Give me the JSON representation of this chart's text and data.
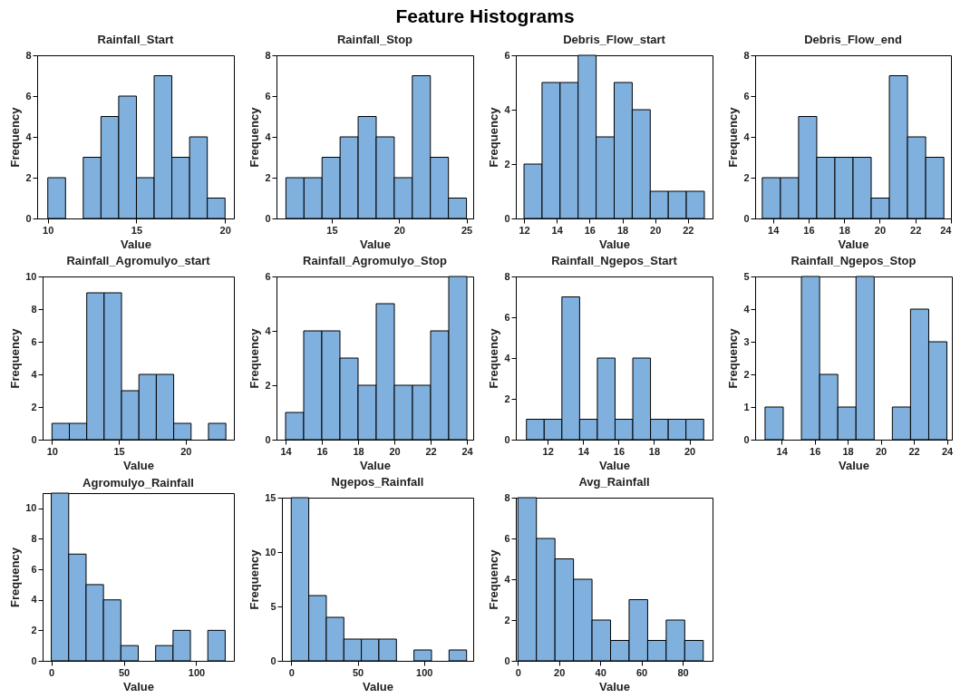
{
  "chart_data": [
    {
      "type": "other",
      "title": "Feature Histograms"
    },
    {
      "type": "histogram",
      "title": "Rainfall_Start",
      "xlabel": "Value",
      "ylabel": "Frequency",
      "color": "#80b1de",
      "bins": [
        10,
        11,
        12,
        13,
        14,
        15,
        16,
        17,
        18,
        19,
        20
      ],
      "values": [
        2,
        0,
        3,
        5,
        6,
        2,
        7,
        3,
        4,
        1
      ],
      "xlim": [
        9.4,
        20.5
      ],
      "xticks": [
        10,
        15,
        20
      ],
      "ylim": [
        0,
        8
      ],
      "yticks": [
        0,
        2,
        4,
        6,
        8
      ]
    },
    {
      "type": "histogram",
      "title": "Rainfall_Stop",
      "xlabel": "Value",
      "ylabel": "Frequency",
      "color": "#80b1de",
      "bins": [
        11.6,
        12.94,
        14.28,
        15.62,
        16.96,
        18.3,
        19.64,
        20.98,
        22.32,
        23.66,
        25
      ],
      "values": [
        2,
        2,
        3,
        4,
        5,
        4,
        2,
        7,
        3,
        1
      ],
      "xlim": [
        10.9,
        25.5
      ],
      "xticks": [
        15,
        20,
        25
      ],
      "ylim": [
        0,
        8
      ],
      "yticks": [
        0,
        2,
        4,
        6,
        8
      ]
    },
    {
      "type": "histogram",
      "title": "Debris_Flow_start",
      "xlabel": "Value",
      "ylabel": "Frequency",
      "color": "#80b1de",
      "bins": [
        12,
        13.1,
        14.2,
        15.3,
        16.4,
        17.5,
        18.6,
        19.7,
        20.8,
        21.9,
        23
      ],
      "values": [
        2,
        5,
        5,
        6,
        3,
        5,
        4,
        1,
        1,
        1
      ],
      "xlim": [
        11.5,
        23.5
      ],
      "xticks": [
        12,
        14,
        16,
        18,
        20,
        22
      ],
      "ylim": [
        0,
        6
      ],
      "yticks": [
        0,
        2,
        4,
        6
      ]
    },
    {
      "type": "histogram",
      "title": "Debris_Flow_end",
      "xlabel": "Value",
      "ylabel": "Frequency",
      "color": "#80b1de",
      "bins": [
        13.4,
        14.42,
        15.44,
        16.46,
        17.48,
        18.5,
        19.52,
        20.54,
        21.56,
        22.58,
        23.6
      ],
      "values": [
        2,
        2,
        5,
        3,
        3,
        3,
        1,
        7,
        4,
        3
      ],
      "xlim": [
        13,
        24
      ],
      "xticks": [
        14,
        16,
        18,
        20,
        22,
        24
      ],
      "ylim": [
        0,
        8
      ],
      "yticks": [
        0,
        2,
        4,
        6,
        8
      ]
    },
    {
      "type": "histogram",
      "title": "Rainfall_Agromulyo_start",
      "xlabel": "Value",
      "ylabel": "Frequency",
      "color": "#80b1de",
      "bins": [
        10,
        11.3,
        12.6,
        13.9,
        15.2,
        16.5,
        17.8,
        19.1,
        20.4,
        21.7,
        23
      ],
      "values": [
        1,
        1,
        9,
        9,
        3,
        4,
        4,
        1,
        0,
        1
      ],
      "xlim": [
        9.3,
        23.6
      ],
      "xticks": [
        10,
        15,
        20
      ],
      "ylim": [
        0,
        10
      ],
      "yticks": [
        0,
        2,
        4,
        6,
        8,
        10
      ]
    },
    {
      "type": "histogram",
      "title": "Rainfall_Agromulyo_Stop",
      "xlabel": "Value",
      "ylabel": "Frequency",
      "color": "#80b1de",
      "bins": [
        14,
        15,
        16,
        17,
        18,
        19,
        20,
        21,
        22,
        23,
        24
      ],
      "values": [
        1,
        4,
        4,
        3,
        2,
        5,
        2,
        2,
        4,
        6
      ],
      "xlim": [
        13.5,
        24.35
      ],
      "xticks": [
        14,
        16,
        18,
        20,
        22,
        24
      ],
      "ylim": [
        0,
        6
      ],
      "yticks": [
        0,
        2,
        4,
        6
      ]
    },
    {
      "type": "histogram",
      "title": "Rainfall_Ngepos_Start",
      "xlabel": "Value",
      "ylabel": "Frequency",
      "color": "#80b1de",
      "bins": [
        10.8,
        11.8,
        12.8,
        13.8,
        14.8,
        15.8,
        16.8,
        17.8,
        18.8,
        19.8,
        20.8
      ],
      "values": [
        1,
        1,
        7,
        1,
        4,
        1,
        4,
        1,
        1,
        1
      ],
      "xlim": [
        10.2,
        21.3
      ],
      "xticks": [
        12,
        14,
        16,
        18,
        20
      ],
      "ylim": [
        0,
        8
      ],
      "yticks": [
        0,
        2,
        4,
        6,
        8
      ]
    },
    {
      "type": "histogram",
      "title": "Rainfall_Ngepos_Stop",
      "xlabel": "Value",
      "ylabel": "Frequency",
      "color": "#80b1de",
      "bins": [
        13,
        14.1,
        15.2,
        16.3,
        17.4,
        18.5,
        19.6,
        20.7,
        21.8,
        22.9,
        24
      ],
      "values": [
        1,
        0,
        5,
        2,
        1,
        5,
        0,
        1,
        4,
        3
      ],
      "xlim": [
        12.4,
        24.3
      ],
      "xticks": [
        14,
        16,
        18,
        20,
        22,
        24
      ],
      "ylim": [
        0,
        5
      ],
      "yticks": [
        0,
        1,
        2,
        3,
        4,
        5
      ]
    },
    {
      "type": "histogram",
      "title": "Agromulyo_Rainfall",
      "xlabel": "Value",
      "ylabel": "Frequency",
      "color": "#80b1de",
      "bins": [
        0,
        12,
        24,
        36,
        48,
        60,
        72,
        84,
        96,
        108,
        120
      ],
      "values": [
        11,
        7,
        5,
        4,
        1,
        0,
        1,
        2,
        0,
        2
      ],
      "xlim": [
        -6,
        126
      ],
      "xticks": [
        0,
        50,
        100
      ],
      "ylim": [
        0,
        11
      ],
      "yticks": [
        0,
        2,
        4,
        6,
        8,
        10
      ]
    },
    {
      "type": "histogram",
      "title": "Ngepos_Rainfall",
      "xlabel": "Value",
      "ylabel": "Frequency",
      "color": "#80b1de",
      "bins": [
        0,
        13.2,
        26.4,
        39.6,
        52.8,
        66,
        79.2,
        92.4,
        105.6,
        118.8,
        132
      ],
      "values": [
        15,
        6,
        4,
        2,
        2,
        2,
        0,
        1,
        0,
        1
      ],
      "xlim": [
        -7,
        137
      ],
      "xticks": [
        0,
        50,
        100
      ],
      "ylim": [
        0,
        15
      ],
      "yticks": [
        0,
        5,
        10,
        15
      ]
    },
    {
      "type": "histogram",
      "title": "Avg_Rainfall",
      "xlabel": "Value",
      "ylabel": "Frequency",
      "color": "#80b1de",
      "bins": [
        0,
        9,
        18,
        27,
        36,
        45,
        54,
        63,
        72,
        81,
        90
      ],
      "values": [
        8,
        6,
        5,
        4,
        2,
        1,
        3,
        1,
        2,
        1
      ],
      "xlim": [
        -1,
        94.5
      ],
      "xticks": [
        0,
        20,
        40,
        60,
        80
      ],
      "ylim": [
        0,
        8
      ],
      "yticks": [
        0,
        2,
        4,
        6,
        8
      ]
    }
  ]
}
